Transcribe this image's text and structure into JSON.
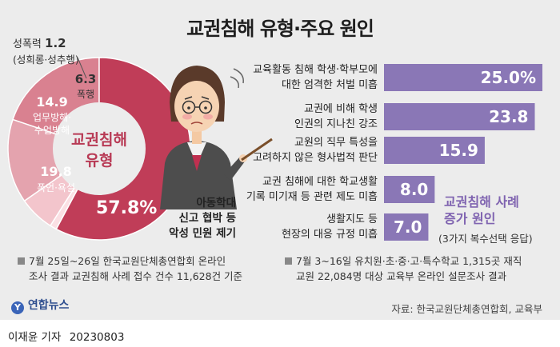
{
  "chart_data": [
    {
      "type": "pie",
      "title": "교권침해 유형·주요 원인",
      "center_label": [
        "교권침해",
        "유형"
      ],
      "categories": [
        "성폭력",
        "폭행",
        "업무방해·수업방해",
        "폭언·욕설",
        "아동학대 신고 협박 등 악성 민원 제기"
      ],
      "category_lines": [
        [
          "성폭력"
        ],
        [
          "폭행"
        ],
        [
          "업무방해·",
          "수업방해"
        ],
        [
          "폭언·욕설"
        ],
        [
          "아동학대",
          "신고 협박 등",
          "악성 민원 제기"
        ]
      ],
      "category_detail": "(성희롱·성추행)",
      "values": [
        1.2,
        6.3,
        14.9,
        19.8,
        57.8
      ],
      "display_values": [
        "1.2",
        "6.3",
        "14.9",
        "19.8",
        "57.8%"
      ],
      "colors": [
        "#fbe0e4",
        "#f3c5cc",
        "#e4a3ae",
        "#d98190",
        "#c03d58"
      ]
    },
    {
      "type": "bar",
      "title_lines": [
        "교권침해 사례",
        "증가 원인"
      ],
      "subtitle": "(3가지 복수선택 응답)",
      "categories": [
        "교육활동 침해 학생·학부모에 대한 엄격한 처벌 미흡",
        "교권에 비해 학생 인권의 지나친 강조",
        "교원의 직무 특성을 고려하지 않은 형사법적 판단",
        "교권 침해에 대한 학교생활 기록 미기재 등 관련 제도 미흡",
        "생활지도 등 현장의 대응 규정 미흡"
      ],
      "category_lines": [
        [
          "교육활동 침해 학생·학부모에",
          "대한 엄격한 처벌 미흡"
        ],
        [
          "교권에 비해 학생",
          "인권의 지나친 강조"
        ],
        [
          "교원의 직무 특성을",
          "고려하지 않은 형사법적 판단"
        ],
        [
          "교권 침해에 대한 학교생활",
          "기록 미기재 등 관련 제도 미흡"
        ],
        [
          "생활지도 등",
          "현장의 대응 규정 미흡"
        ]
      ],
      "values": [
        25.0,
        23.8,
        15.9,
        8.0,
        7.0
      ],
      "display_values": [
        "25.0%",
        "23.8",
        "15.9",
        "8.0",
        "7.0"
      ],
      "color": "#8a77b6"
    }
  ],
  "notes": {
    "left": [
      "7월 25일~26일 한국교원단체총연합회 온라인",
      "조사 결과 교권침해 사례 접수 건수 11,628건 기준"
    ],
    "right": [
      "7월 3~16일 유치원·초·중·고·특수학교 1,315곳 재직",
      "교원 22,084명 대상 교육부 온라인 설문조사 결과"
    ]
  },
  "branding": {
    "logo_text": "연합뉴스"
  },
  "source": "자료: 한국교원단체총연합회, 교육부",
  "byline": {
    "reporter": "이재윤 기자",
    "date": "20230803"
  }
}
